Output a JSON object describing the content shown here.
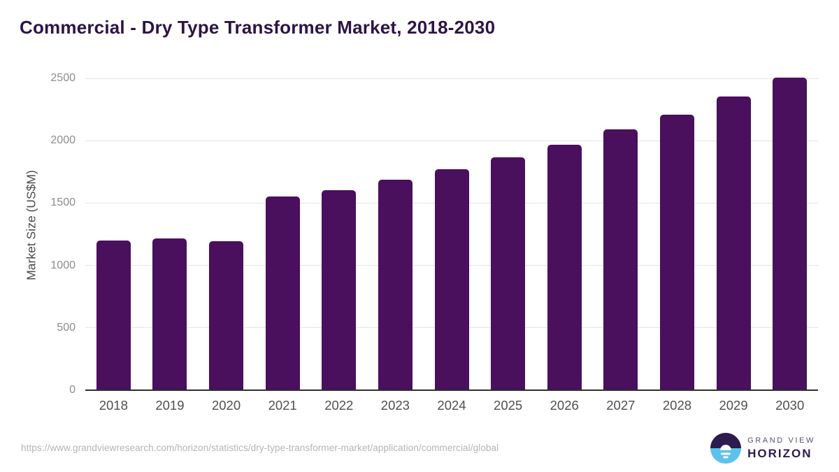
{
  "chart_data": {
    "type": "bar",
    "title": "Commercial - Dry Type Transformer Market, 2018-2030",
    "categories": [
      "2018",
      "2019",
      "2020",
      "2021",
      "2022",
      "2023",
      "2024",
      "2025",
      "2026",
      "2027",
      "2028",
      "2029",
      "2030"
    ],
    "values": [
      1200,
      1215,
      1195,
      1550,
      1605,
      1685,
      1770,
      1865,
      1970,
      2090,
      2210,
      2355,
      2505
    ],
    "xlabel": "",
    "ylabel": "Market Size (US$M)",
    "ylim": [
      0,
      2500
    ],
    "yticks": [
      0,
      500,
      1000,
      1500,
      2000,
      2500
    ],
    "grid": "horizontal",
    "legend": "none",
    "bar_color": "#4a0f5d"
  },
  "colors": {
    "title_text": "#2d1445",
    "bar": "#4a0f5d",
    "y_tick_text": "#8d8d8d",
    "x_tick_text": "#4f4f4f",
    "axis_line": "#2e2e2e",
    "gridline": "#e4e4e4",
    "url_text": "#b4b4b4",
    "logo_dark": "#2d1b4e",
    "logo_blue": "#5bc2ea",
    "logo_gray": "#575263"
  },
  "footer": {
    "source_url": "https://www.grandviewresearch.com/horizon/statistics/dry-type-transformer-market/application/commercial/global",
    "logo": {
      "brand": "GRAND VIEW",
      "product": "HORIZON"
    }
  }
}
